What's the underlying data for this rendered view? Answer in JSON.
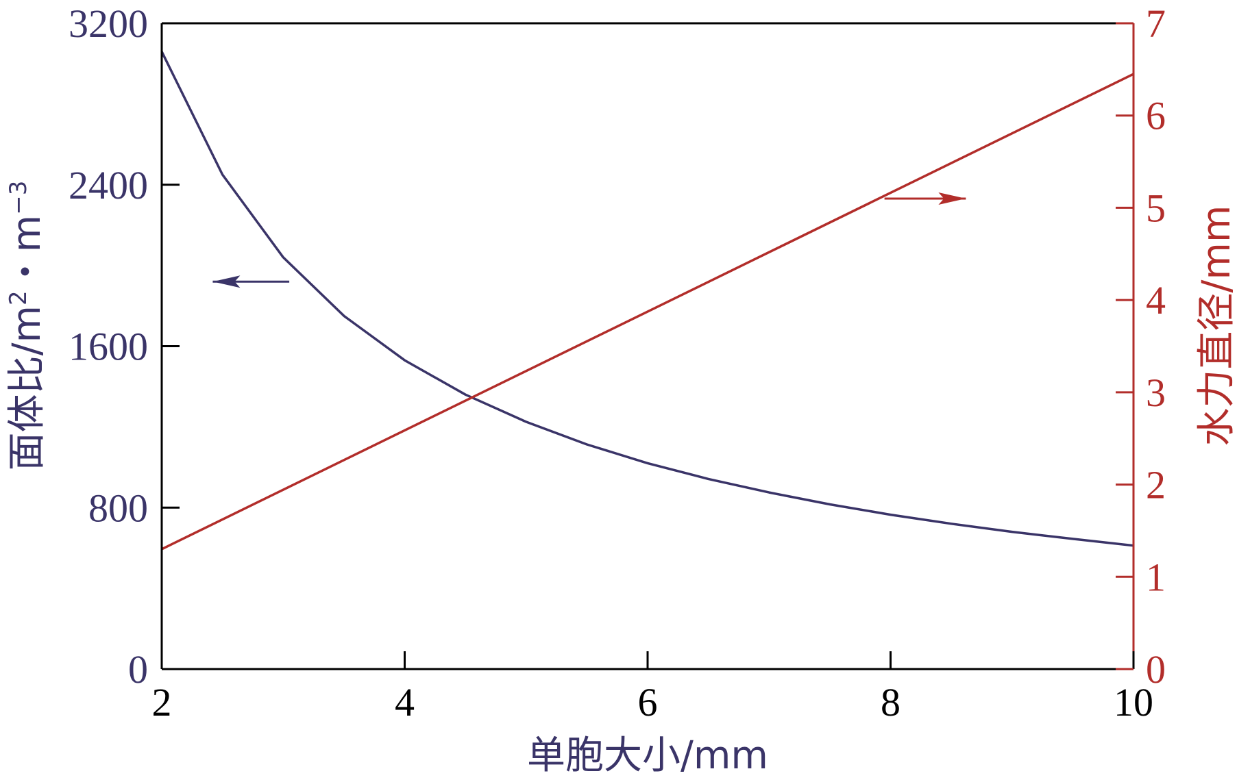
{
  "chart_data": {
    "type": "line",
    "x": {
      "label": "单胞大小/mm",
      "lim": [
        2,
        10
      ],
      "ticks": [
        2,
        4,
        6,
        8,
        10
      ]
    },
    "y_left": {
      "label_main": "面体比/m",
      "label_sup1": "2",
      "label_mid": "・m",
      "label_sup2": "−3",
      "lim": [
        0,
        3200
      ],
      "ticks": [
        0,
        800,
        1600,
        2400,
        3200
      ],
      "color": "#3a3468"
    },
    "y_right": {
      "label": "水力直径/mm",
      "lim": [
        0,
        7
      ],
      "ticks": [
        0,
        1,
        2,
        3,
        4,
        5,
        6,
        7
      ],
      "color": "#b22d2a"
    },
    "series": [
      {
        "axis": "left",
        "color": "#3a3468",
        "x": [
          2,
          2.5,
          3,
          3.5,
          4,
          4.5,
          5,
          5.5,
          6,
          6.5,
          7,
          7.5,
          8,
          8.5,
          9,
          9.5,
          10
        ],
        "values": [
          3060,
          2450,
          2040,
          1750,
          1530,
          1360,
          1225,
          1113,
          1020,
          942,
          875,
          816,
          765,
          720,
          680,
          645,
          612
        ]
      },
      {
        "axis": "right",
        "color": "#b22d2a",
        "x": [
          2,
          10
        ],
        "values": [
          1.3,
          6.45
        ]
      }
    ],
    "annotations": [
      {
        "type": "arrow",
        "direction": "left",
        "axis": "left",
        "color": "#3a3468"
      },
      {
        "type": "arrow",
        "direction": "right",
        "axis": "right",
        "color": "#b22d2a"
      }
    ]
  }
}
